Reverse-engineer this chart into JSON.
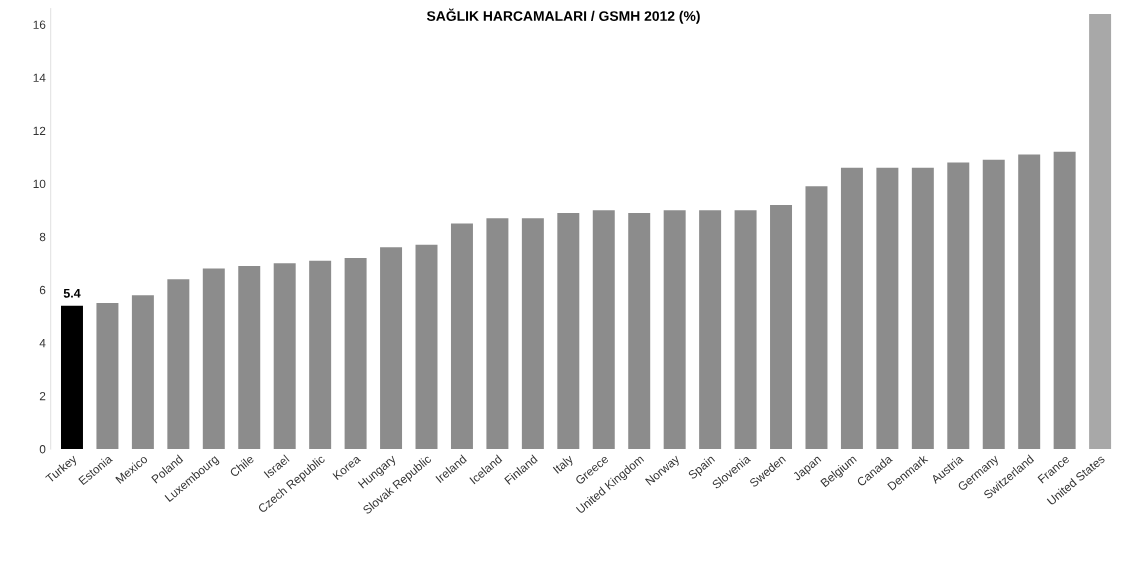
{
  "chart_data": {
    "type": "bar",
    "title": "SAĞLIK HARCAMALARI / GSMH 2012 (%)",
    "categories": [
      "Turkey",
      "Estonia",
      "Mexico",
      "Poland",
      "Luxembourg",
      "Chile",
      "Israel",
      "Czech Republic",
      "Korea",
      "Hungary",
      "Slovak Republic",
      "Ireland",
      "Iceland",
      "Finland",
      "Italy",
      "Greece",
      "United Kingdom",
      "Norway",
      "Spain",
      "Slovenia",
      "Sweden",
      "Japan",
      "Belgium",
      "Canada",
      "Denmark",
      "Austria",
      "Germany",
      "Switzerland",
      "France",
      "United States"
    ],
    "values": [
      5.4,
      5.5,
      5.8,
      6.4,
      6.8,
      6.9,
      7.0,
      7.1,
      7.2,
      7.6,
      7.7,
      8.5,
      8.7,
      8.7,
      8.9,
      9.0,
      8.9,
      9.0,
      9.0,
      9.0,
      9.2,
      9.9,
      10.6,
      10.6,
      10.6,
      10.8,
      10.9,
      11.1,
      11.2,
      16.4
    ],
    "colors": [
      "#000000",
      "#8c8c8c",
      "#8c8c8c",
      "#8c8c8c",
      "#8c8c8c",
      "#8c8c8c",
      "#8c8c8c",
      "#8c8c8c",
      "#8c8c8c",
      "#8c8c8c",
      "#8c8c8c",
      "#8c8c8c",
      "#8c8c8c",
      "#8c8c8c",
      "#8c8c8c",
      "#8c8c8c",
      "#8c8c8c",
      "#8c8c8c",
      "#8c8c8c",
      "#8c8c8c",
      "#8c8c8c",
      "#8c8c8c",
      "#8c8c8c",
      "#8c8c8c",
      "#8c8c8c",
      "#8c8c8c",
      "#8c8c8c",
      "#8c8c8c",
      "#8c8c8c",
      "#a8a8a8"
    ],
    "value_labels": [
      "5.4",
      null,
      null,
      null,
      null,
      null,
      null,
      null,
      null,
      null,
      null,
      null,
      null,
      null,
      null,
      null,
      null,
      null,
      null,
      null,
      null,
      null,
      null,
      null,
      null,
      null,
      null,
      null,
      null,
      null
    ],
    "ylim": [
      0,
      16.6
    ],
    "yticks": [
      0,
      2,
      4,
      6,
      8,
      10,
      12,
      14,
      16
    ],
    "grid": false
  }
}
